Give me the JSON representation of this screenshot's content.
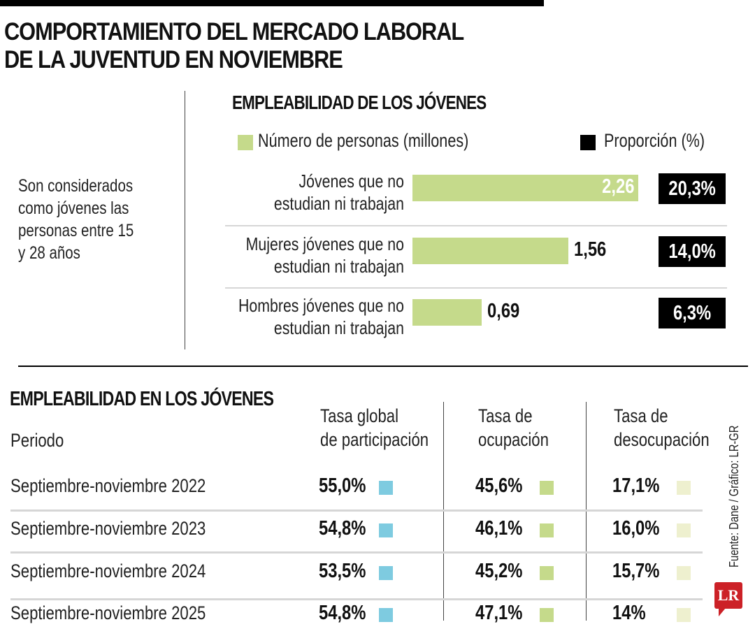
{
  "title_lines": [
    "COMPORTAMIENTO DEL MERCADO LABORAL",
    "DE LA JUVENTUD EN NOVIEMBRE"
  ],
  "note_lines": [
    "Son considerados",
    "como jóvenes las",
    "personas entre 15",
    "y 28 años"
  ],
  "colors": {
    "bar_green": "#c5da8b",
    "proportion_black": "#000000",
    "participation_blue": "#7ecbe0",
    "occupation_green": "#c5da8b",
    "unemployment_pale": "#eef0cf",
    "logo_red": "#cc2127"
  },
  "chart_data": [
    {
      "type": "bar",
      "orientation": "horizontal",
      "title": "EMPLEABILIDAD DE LOS JÓVENES",
      "legend": [
        "Número de personas (millones)",
        "Proporción (%)"
      ],
      "legend_placement": "top",
      "categories": [
        [
          "Jóvenes que no",
          "estudian ni trabajan"
        ],
        [
          "Mujeres jóvenes que no",
          "estudian ni trabajan"
        ],
        [
          "Hombres jóvenes que no",
          "estudian ni trabajan"
        ]
      ],
      "series": [
        {
          "name": "Número de personas (millones)",
          "values": [
            2.26,
            1.56,
            0.69
          ],
          "labels": [
            "2,26",
            "1,56",
            "0,69"
          ]
        },
        {
          "name": "Proporción (%)",
          "values": [
            20.3,
            14.0,
            6.3
          ],
          "labels": [
            "20,3%",
            "14,0%",
            "6,3%"
          ]
        }
      ],
      "xlim": [
        0,
        2.26
      ],
      "grid": false
    },
    {
      "type": "table",
      "title": "EMPLEABILIDAD EN LOS JÓVENES",
      "columns": [
        {
          "label": [
            "Periodo"
          ]
        },
        {
          "label": [
            "Tasa global",
            "de participación"
          ]
        },
        {
          "label": [
            "Tasa de",
            "ocupación"
          ]
        },
        {
          "label": [
            "Tasa de",
            "desocupación"
          ]
        }
      ],
      "rows": [
        {
          "period": "Septiembre-noviembre 2022",
          "values": [
            "55,0%",
            "45,6%",
            "17,1%"
          ]
        },
        {
          "period": "Septiembre-noviembre 2023",
          "values": [
            "54,8%",
            "46,1%",
            "16,0%"
          ]
        },
        {
          "period": "Septiembre-noviembre 2024",
          "values": [
            "53,5%",
            "45,2%",
            "15,7%"
          ]
        },
        {
          "period": "Septiembre-noviembre 2025",
          "values": [
            "54,8%",
            "47,1%",
            "14%"
          ]
        }
      ]
    }
  ],
  "source": "Fuente: Dane / Gráfico: LR-GR",
  "logo": "LR"
}
